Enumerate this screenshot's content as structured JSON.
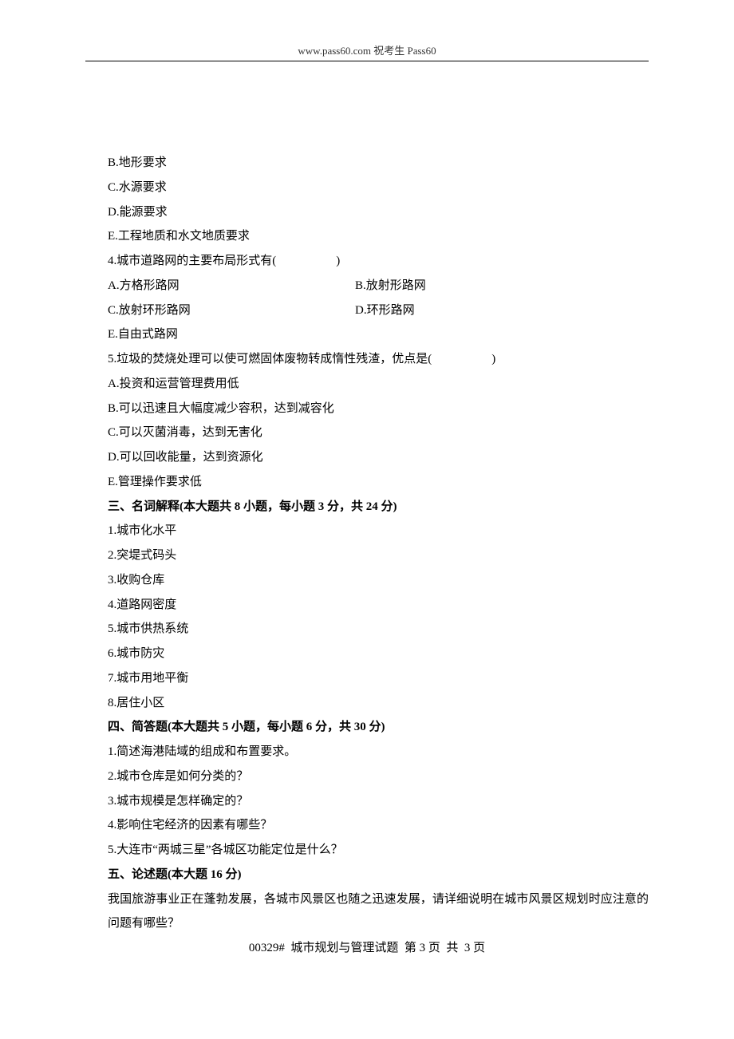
{
  "header": {
    "text": "www.pass60.com 祝考生 Pass60"
  },
  "options_prev": {
    "b": "B.地形要求",
    "c": "C.水源要求",
    "d": "D.能源要求",
    "e": "E.工程地质和水文地质要求"
  },
  "q4": {
    "stem": "4.城市道路网的主要布局形式有(　　　　　)",
    "a": "A.方格形路网",
    "b": "B.放射形路网",
    "c": "C.放射环形路网",
    "d": "D.环形路网",
    "e": "E.自由式路网"
  },
  "q5": {
    "stem": "5.垃圾的焚烧处理可以使可燃固体废物转成惰性残渣，优点是(　　　　　)",
    "a": "A.投资和运营管理费用低",
    "b": "B.可以迅速且大幅度减少容积，达到减容化",
    "c": "C.可以灭菌消毒，达到无害化",
    "d": "D.可以回收能量，达到资源化",
    "e": "E.管理操作要求低"
  },
  "section3": {
    "title": "三、名词解释(本大题共 8 小题，每小题 3 分，共 24 分)",
    "items": [
      "1.城市化水平",
      "2.突堤式码头",
      "3.收购仓库",
      "4.道路网密度",
      "5.城市供热系统",
      "6.城市防灾",
      "7.城市用地平衡",
      "8.居住小区"
    ]
  },
  "section4": {
    "title": "四、简答题(本大题共 5 小题，每小题 6 分，共 30 分)",
    "items": [
      "1.简述海港陆域的组成和布置要求。",
      "2.城市仓库是如何分类的？",
      "3.城市规模是怎样确定的？",
      "4.影响住宅经济的因素有哪些？",
      "5.大连市“两城三星”各城区功能定位是什么？"
    ]
  },
  "section5": {
    "title": "五、论述题(本大题 16 分)",
    "essay": "我国旅游事业正在蓬勃发展，各城市风景区也随之迅速发展，请详细说明在城市风景区规划时应注意的问题有哪些？"
  },
  "footer": {
    "text": "00329#  城市规划与管理试题  第 3 页  共  3 页"
  }
}
